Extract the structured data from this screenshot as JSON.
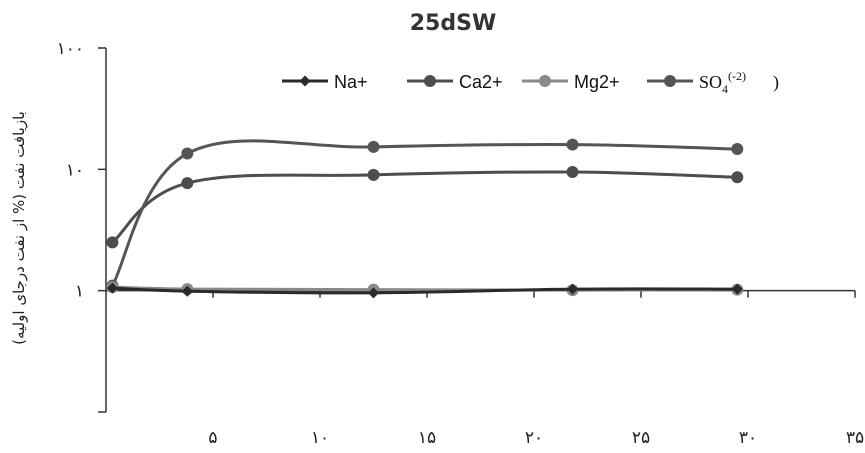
{
  "chart_data": {
    "type": "line",
    "title": "25dSW",
    "ylabel": "بازیافت نفت (% از نفت درجای اولیه)",
    "xlabel": "",
    "y_scale": "log",
    "ylim": [
      0.1,
      100
    ],
    "xlim": [
      0,
      35
    ],
    "y_ticks": [
      {
        "value": 100,
        "label": "۱۰۰"
      },
      {
        "value": 10,
        "label": "۱۰"
      },
      {
        "value": 1,
        "label": "۱"
      }
    ],
    "x_ticks": [
      {
        "value": 5,
        "label": "۵"
      },
      {
        "value": 10,
        "label": "۱۰"
      },
      {
        "value": 15,
        "label": "۱۵"
      },
      {
        "value": 20,
        "label": "۲۰"
      },
      {
        "value": 25,
        "label": "۲۵"
      },
      {
        "value": 30,
        "label": "۳۰"
      },
      {
        "value": 35,
        "label": "۳۵"
      }
    ],
    "grid": false,
    "legend_position": "top-right",
    "series": [
      {
        "name": "Na+",
        "color": "#2a2a2a",
        "marker": "diamond",
        "x": [
          0.3,
          3.8,
          12.5,
          21.8,
          29.5
        ],
        "y": [
          1.05,
          0.99,
          0.96,
          1.03,
          1.03
        ]
      },
      {
        "name": "Ca2+",
        "color": "#4d4d4d",
        "marker": "circle",
        "x": [
          0.3,
          3.8,
          12.5,
          21.8,
          29.5
        ],
        "y": [
          2.5,
          7.7,
          9.0,
          9.5,
          8.6
        ]
      },
      {
        "name": "Mg2+",
        "color": "#8a8a8a",
        "marker": "circle",
        "x": [
          0.3,
          3.8,
          12.5,
          21.8,
          29.5
        ],
        "y": [
          1.07,
          1.03,
          1.02,
          1.01,
          1.02
        ]
      },
      {
        "name": "SO4(-2)",
        "color": "#555555",
        "marker": "circle",
        "x": [
          0.3,
          3.8,
          12.5,
          21.8,
          29.5
        ],
        "y": [
          1.1,
          13.5,
          15.3,
          16.0,
          14.7
        ]
      }
    ]
  },
  "legend": {
    "items": [
      {
        "label": "Na+",
        "color": "#2a2a2a",
        "marker": "diamond"
      },
      {
        "label": "Ca2+",
        "color": "#4d4d4d",
        "marker": "circle"
      },
      {
        "label": "Mg2+",
        "color": "#8a8a8a",
        "marker": "circle"
      },
      {
        "label": "SO",
        "sub": "4",
        "sup": "(-2)",
        "close": ")",
        "color": "#555555",
        "marker": "circle"
      }
    ]
  }
}
